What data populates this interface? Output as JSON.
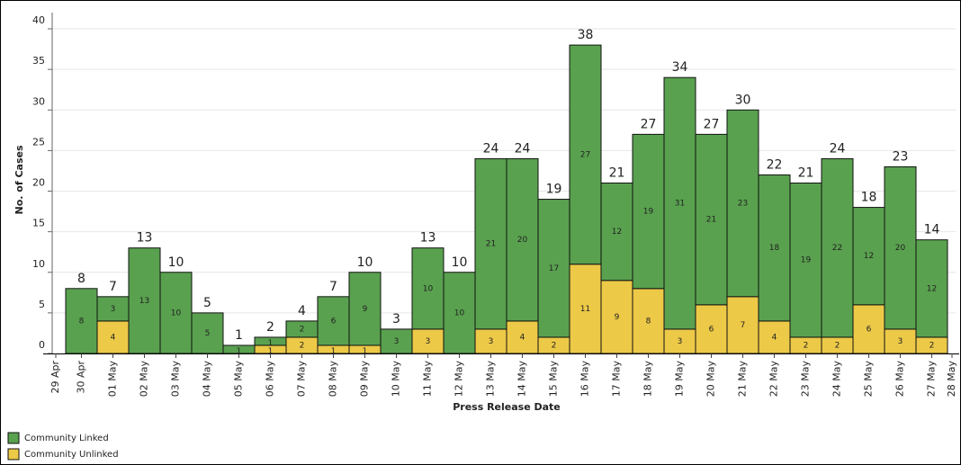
{
  "chart_data": {
    "type": "bar",
    "stacked": true,
    "x_label": "Press Release Date",
    "y_label": "No. of Cases",
    "categories": [
      "29 Apr",
      "30 Apr",
      "01 May",
      "02 May",
      "03 May",
      "04 May",
      "05 May",
      "06 May",
      "07 May",
      "08 May",
      "09 May",
      "10 May",
      "11 May",
      "12 May",
      "13 May",
      "14 May",
      "15 May",
      "16 May",
      "17 May",
      "18 May",
      "19 May",
      "20 May",
      "21 May",
      "22 May",
      "23 May",
      "24 May",
      "25 May",
      "26 May",
      "27 May",
      "28 May"
    ],
    "series": [
      {
        "name": "Community Linked",
        "color": "#59a14f",
        "values": [
          null,
          8,
          3,
          13,
          10,
          5,
          1,
          1,
          2,
          6,
          9,
          3,
          10,
          10,
          21,
          20,
          17,
          27,
          12,
          19,
          31,
          21,
          23,
          18,
          19,
          22,
          12,
          20,
          12,
          null
        ]
      },
      {
        "name": "Community Unlinked",
        "color": "#edc948",
        "values": [
          null,
          null,
          4,
          null,
          null,
          null,
          null,
          1,
          2,
          1,
          1,
          null,
          3,
          null,
          3,
          4,
          2,
          11,
          9,
          8,
          3,
          6,
          7,
          4,
          2,
          2,
          6,
          3,
          2,
          null
        ]
      }
    ],
    "totals": [
      null,
      8,
      7,
      13,
      10,
      5,
      1,
      2,
      4,
      7,
      10,
      3,
      13,
      10,
      24,
      24,
      19,
      38,
      21,
      27,
      34,
      27,
      30,
      22,
      21,
      24,
      18,
      23,
      14,
      null
    ],
    "ylim": [
      0,
      42
    ],
    "yticks": [
      0,
      5,
      10,
      15,
      20,
      25,
      30,
      35,
      40
    ],
    "grid": true,
    "legend": "bottom-left"
  }
}
